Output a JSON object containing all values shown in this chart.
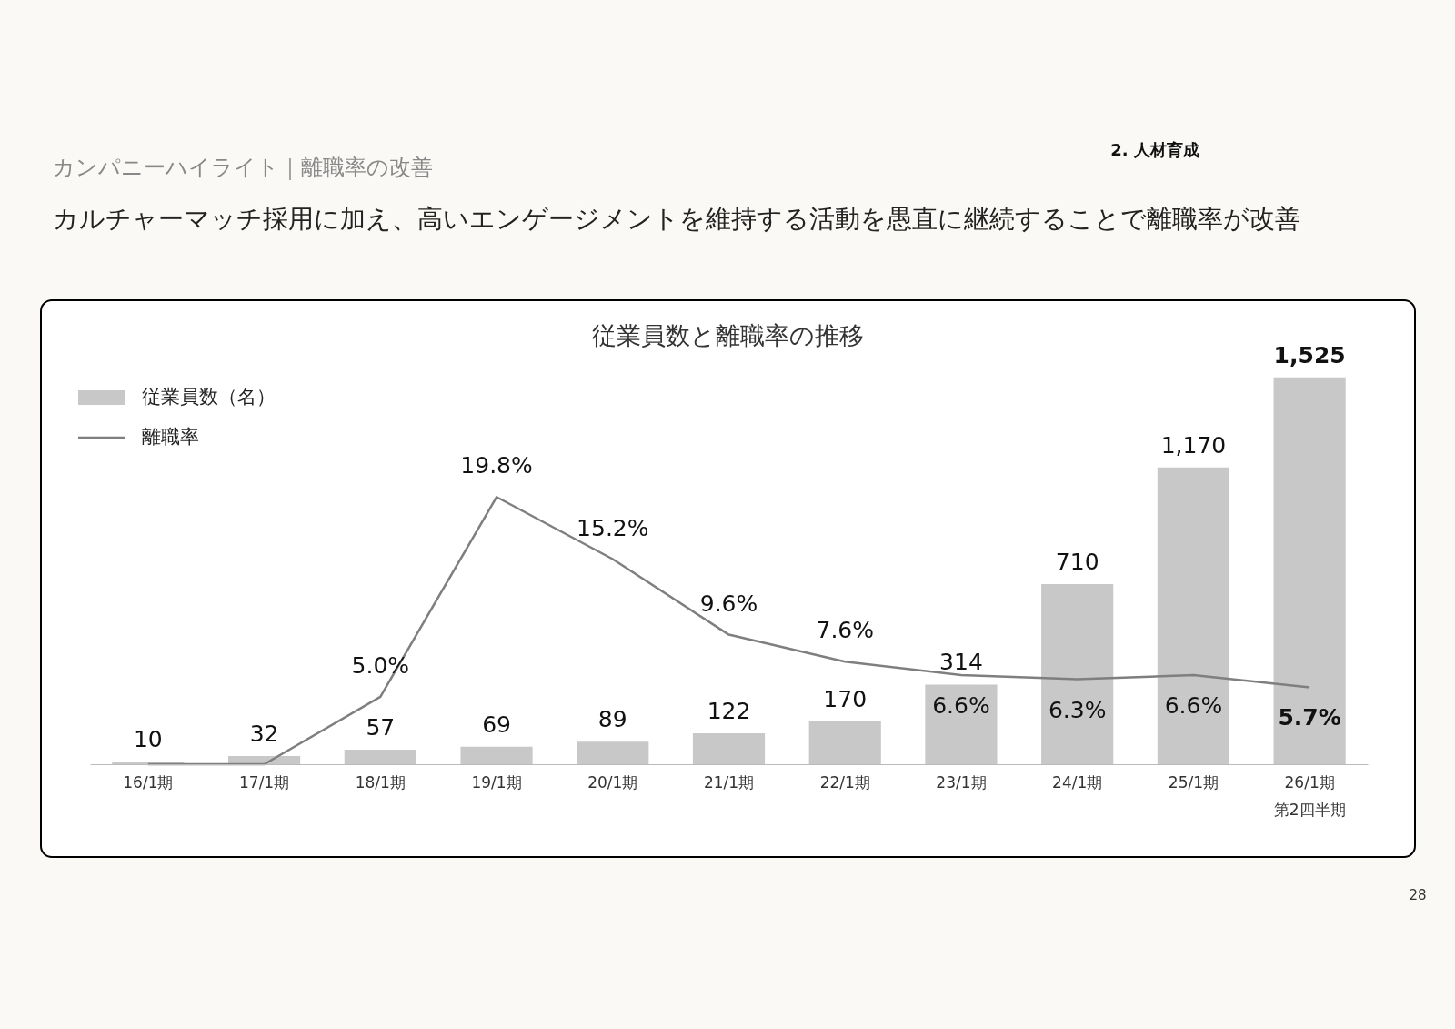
{
  "chart_data": {
    "type": "bar",
    "title": "従業員数と離職率の推移",
    "annotations": [
      "カンパニーハイライト｜離職率の改善",
      "カルチャーマッチ採用に加え、高いエンゲージメントを維持する活動を愚直に継続することで離職率が改善",
      "2. 人材育成",
      "28"
    ],
    "categories": [
      "16/1期",
      "17/1期",
      "18/1期",
      "19/1期",
      "20/1期",
      "21/1期",
      "22/1期",
      "23/1期",
      "24/1期",
      "25/1期",
      "26/1期第2四半期"
    ],
    "series": [
      {
        "name": "従業員数（名）",
        "color": "#c8c8c8",
        "values": [
          10,
          32,
          57,
          69,
          89,
          122,
          170,
          314,
          710,
          1170,
          1525
        ],
        "value_labels": [
          "10",
          "32",
          "57",
          "69",
          "89",
          "122",
          "170",
          "314",
          "710",
          "1,170",
          "1,525"
        ]
      },
      {
        "name": "離職率",
        "type": "line",
        "axis": "y2",
        "color": "#7f7f7f",
        "values": [
          0,
          0,
          5.0,
          19.8,
          15.2,
          9.6,
          7.6,
          6.6,
          6.3,
          6.6,
          5.7
        ],
        "value_labels": [
          null,
          null,
          "5.0%",
          "19.8%",
          "15.2%",
          "9.6%",
          "7.6%",
          "6.6%",
          "6.3%",
          "6.6%",
          "5.7%"
        ]
      }
    ],
    "tick_labels": "x",
    "legend": "top left",
    "grid": false
  }
}
